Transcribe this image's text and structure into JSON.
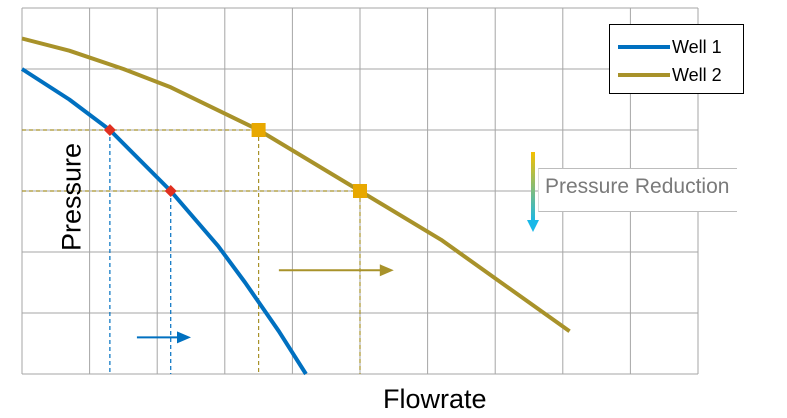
{
  "chart_data": {
    "type": "line",
    "title": "",
    "xlabel": "Flowrate",
    "ylabel": "Pressure",
    "xlim": [
      0,
      10
    ],
    "ylim": [
      0,
      6
    ],
    "grid": true,
    "legend_position": "top-right",
    "series": [
      {
        "name": "Well 1",
        "color": "#0070c0",
        "points": [
          [
            0,
            5
          ],
          [
            0.7,
            4.5
          ],
          [
            1.3,
            4
          ],
          [
            2.2,
            3
          ],
          [
            2.9,
            2.1
          ],
          [
            3.3,
            1.5
          ],
          [
            3.8,
            0.7
          ],
          [
            4.2,
            0
          ]
        ],
        "operating_points": [
          [
            1.3,
            4
          ],
          [
            2.2,
            3
          ]
        ],
        "marker_color": "#e03020"
      },
      {
        "name": "Well 2",
        "color": "#a8922a",
        "points": [
          [
            0,
            5.5
          ],
          [
            0.7,
            5.3
          ],
          [
            1.5,
            5
          ],
          [
            2.2,
            4.7
          ],
          [
            3.5,
            4
          ],
          [
            5,
            3
          ],
          [
            6.2,
            2.2
          ],
          [
            8.1,
            0.7
          ]
        ],
        "operating_points": [
          [
            3.5,
            4
          ],
          [
            5,
            3
          ]
        ],
        "marker_color": "#e8a800"
      }
    ],
    "annotations": [
      {
        "text": "Pressure Reduction",
        "kind": "vertical-arrow",
        "color_start": "#f5c000",
        "color_end": "#19b8e8"
      }
    ],
    "flow_arrows": [
      {
        "series": "Well 1",
        "color": "#0070c0",
        "from": [
          1.7,
          0.6
        ],
        "to": [
          2.5,
          0.6
        ]
      },
      {
        "series": "Well 2",
        "color": "#a8922a",
        "from": [
          3.8,
          1.7
        ],
        "to": [
          5.5,
          1.7
        ]
      }
    ],
    "pressure_levels": [
      4,
      3
    ]
  }
}
